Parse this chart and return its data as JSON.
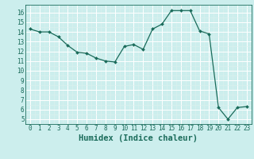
{
  "x": [
    0,
    1,
    2,
    3,
    4,
    5,
    6,
    7,
    8,
    9,
    10,
    11,
    12,
    13,
    14,
    15,
    16,
    17,
    18,
    19,
    20,
    21,
    22,
    23
  ],
  "y": [
    14.3,
    14.0,
    14.0,
    13.5,
    12.6,
    11.9,
    11.8,
    11.3,
    11.0,
    10.9,
    12.5,
    12.7,
    12.2,
    14.3,
    14.8,
    16.2,
    16.2,
    16.2,
    14.1,
    13.8,
    6.2,
    5.0,
    6.2,
    6.3
  ],
  "xlabel": "Humidex (Indice chaleur)",
  "bg_color": "#cceeed",
  "line_color": "#1a6b5a",
  "grid_major_color": "#ffffff",
  "grid_minor_color": "#ddf0ee",
  "xlim": [
    -0.5,
    23.5
  ],
  "ylim": [
    4.5,
    16.8
  ],
  "yticks": [
    5,
    6,
    7,
    8,
    9,
    10,
    11,
    12,
    13,
    14,
    15,
    16
  ],
  "xticks": [
    0,
    1,
    2,
    3,
    4,
    5,
    6,
    7,
    8,
    9,
    10,
    11,
    12,
    13,
    14,
    15,
    16,
    17,
    18,
    19,
    20,
    21,
    22,
    23
  ],
  "tick_fontsize": 5.5,
  "label_fontsize": 7.5
}
